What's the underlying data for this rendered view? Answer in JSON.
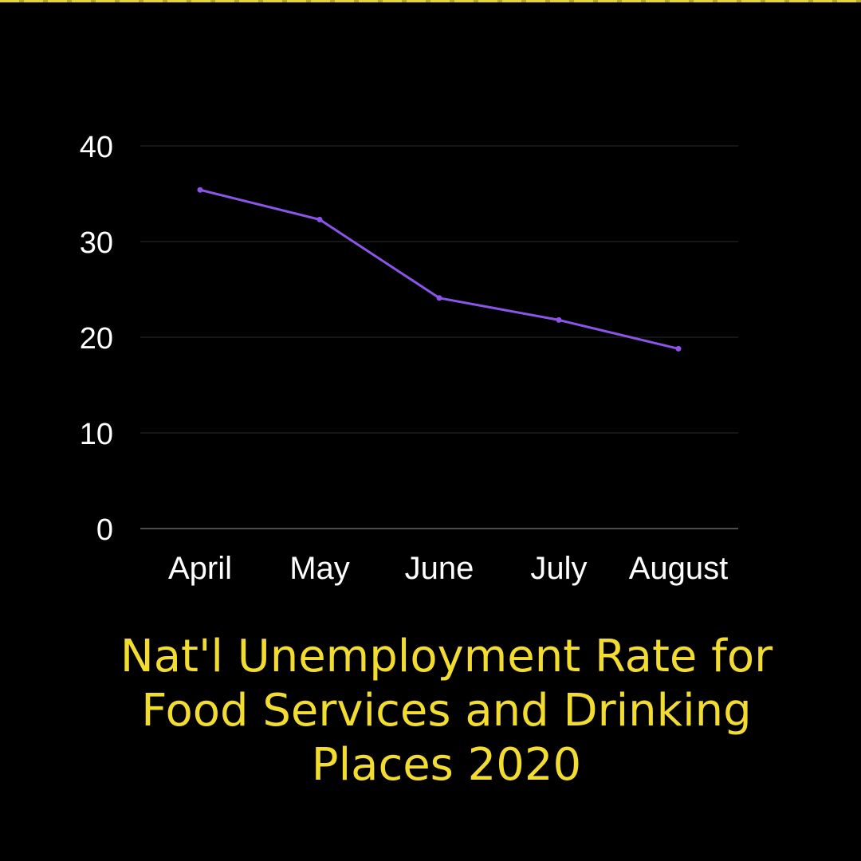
{
  "title_lines": [
    "Nat'l Unemployment Rate for",
    "Food Services and Drinking",
    "Places 2020"
  ],
  "colors": {
    "background": "#000000",
    "line": "#8b55e8",
    "title": "#f2dc2f",
    "axis_text": "#ffffff",
    "grid": "#2b2b2b",
    "baseline": "#9a9a9a"
  },
  "chart_data": {
    "type": "line",
    "title": "Nat'l Unemployment Rate for Food Services and Drinking Places 2020",
    "categories": [
      "April",
      "May",
      "June",
      "July",
      "August"
    ],
    "series": [
      {
        "values": [
          35.4,
          32.3,
          24.1,
          21.8,
          18.8
        ]
      }
    ],
    "yticks": [
      "0",
      "10",
      "20",
      "30",
      "40"
    ],
    "ylim": [
      0,
      40
    ],
    "grid": true,
    "legend": "none",
    "xlabel": "",
    "ylabel": ""
  }
}
